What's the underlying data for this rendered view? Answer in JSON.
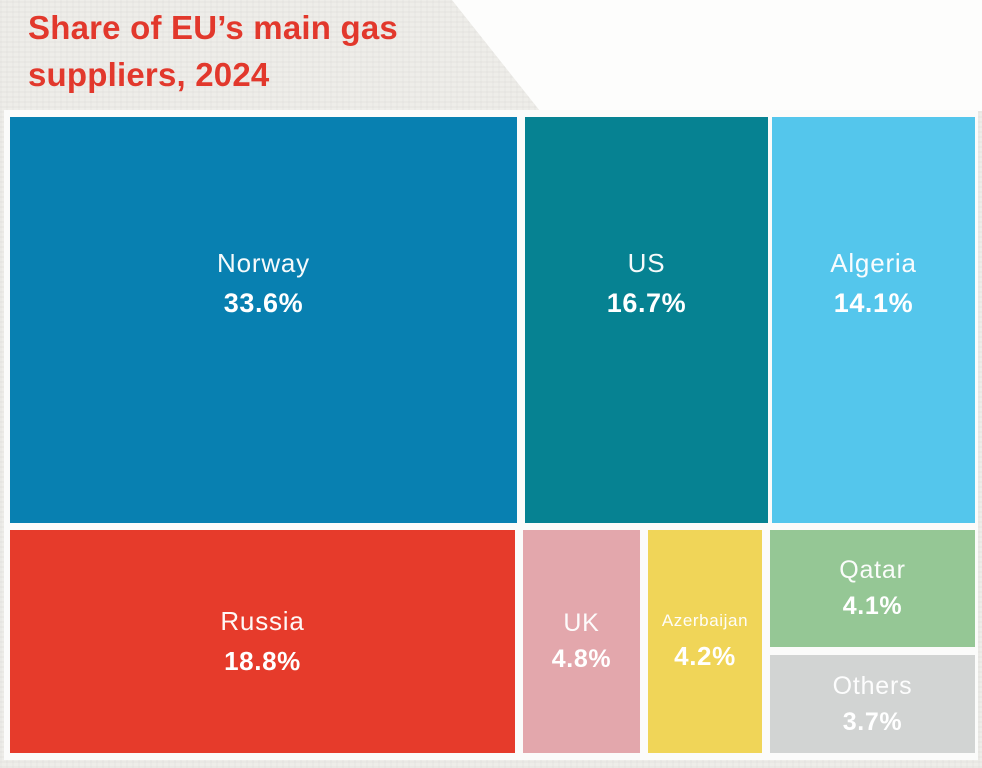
{
  "title": {
    "line1": "Share of EU’s main gas",
    "line2": "suppliers, 2024"
  },
  "colors": {
    "title_text": "#e2382c",
    "background": "#eeede9",
    "cell_gap": "#fbfbfa",
    "cell_label_text": "#ffffff"
  },
  "chart_data": {
    "type": "treemap",
    "title": "Share of EU’s main gas suppliers, 2024",
    "unit": "%",
    "legend_position": "none",
    "items": [
      {
        "label": "Norway",
        "value": 33.6,
        "display": "33.6%",
        "color": "#0880b1"
      },
      {
        "label": "US",
        "value": 16.7,
        "display": "16.7%",
        "color": "#068292"
      },
      {
        "label": "Algeria",
        "value": 14.1,
        "display": "14.1%",
        "color": "#54c6ec"
      },
      {
        "label": "Russia",
        "value": 18.8,
        "display": "18.8%",
        "color": "#e63b2b"
      },
      {
        "label": "UK",
        "value": 4.8,
        "display": "4.8%",
        "color": "#e3a7ac"
      },
      {
        "label": "Azerbaijan",
        "value": 4.2,
        "display": "4.2%",
        "color": "#f0d558"
      },
      {
        "label": "Qatar",
        "value": 4.1,
        "display": "4.1%",
        "color": "#95c795"
      },
      {
        "label": "Others",
        "value": 3.7,
        "display": "3.7%",
        "color": "#d2d4d3"
      }
    ]
  }
}
